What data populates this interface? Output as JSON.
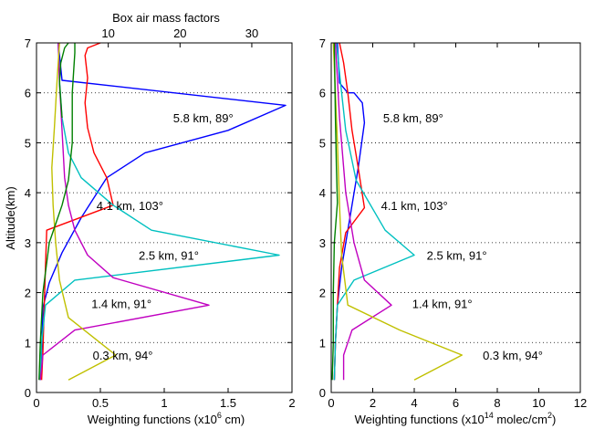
{
  "chart_data": [
    {
      "type": "line",
      "ylabel": "Altitude(km)",
      "xlabel_pre": "Weighting functions (x10",
      "xlabel_sup": "6",
      "xlabel_post": " cm)",
      "xlim": [
        0,
        2
      ],
      "ylim": [
        0,
        7
      ],
      "xticks": [
        "0",
        "0.5",
        "1",
        "1.5",
        "2"
      ],
      "yticks": [
        "0",
        "1",
        "2",
        "3",
        "4",
        "5",
        "6",
        "7"
      ],
      "grid": "horizontal dotted",
      "top_axis": {
        "label": "Box air mass factors",
        "ticks": [
          {
            "value": 10,
            "label": "10"
          },
          {
            "value": 20,
            "label": "20"
          },
          {
            "value": 30,
            "label": "30"
          }
        ],
        "scale_note": "top axis value ≈ 17.8 × bottom axis value"
      },
      "series": [
        {
          "name": "5.8 km, 89°",
          "color": "#0000ff",
          "x": [
            0.03,
            0.04,
            0.05,
            0.1,
            0.2,
            0.35,
            0.55,
            0.85,
            1.5,
            1.95,
            0.2,
            0.17
          ],
          "y": [
            0.25,
            0.8,
            1.7,
            2.2,
            2.8,
            3.5,
            4.3,
            4.8,
            5.25,
            5.75,
            6.25,
            7.0
          ]
        },
        {
          "name": "4.1 km, 103°",
          "color": "#ff0000",
          "x": [
            0.04,
            0.05,
            0.06,
            0.07,
            0.08,
            0.6,
            0.55,
            0.45,
            0.4,
            0.38,
            0.4,
            0.38,
            0.4,
            0.5
          ],
          "y": [
            0.25,
            0.8,
            1.7,
            2.5,
            3.25,
            3.75,
            4.3,
            4.8,
            5.3,
            5.8,
            6.3,
            6.75,
            6.9,
            7.0
          ]
        },
        {
          "name": "2.5 km, 91°",
          "color": "#00c0c0",
          "x": [
            0.03,
            0.04,
            0.07,
            0.3,
            1.9,
            0.9,
            0.6,
            0.35,
            0.25,
            0.2,
            0.18,
            0.17
          ],
          "y": [
            0.25,
            1.0,
            1.75,
            2.25,
            2.75,
            3.25,
            3.75,
            4.3,
            4.8,
            5.5,
            6.25,
            7.0
          ]
        },
        {
          "name": "1.4 km, 91°",
          "color": "#c000c0",
          "x": [
            0.03,
            0.05,
            0.3,
            1.35,
            0.6,
            0.4,
            0.3,
            0.25,
            0.22,
            0.2,
            0.18,
            0.17
          ],
          "y": [
            0.25,
            0.75,
            1.25,
            1.75,
            2.3,
            2.75,
            3.25,
            3.75,
            4.3,
            5.25,
            6.2,
            7.0
          ]
        },
        {
          "name": "0.3 km, 94°",
          "color": "#c0c000",
          "x": [
            0.25,
            0.62,
            0.25,
            0.18,
            0.15,
            0.13,
            0.12,
            0.14,
            0.16,
            0.18
          ],
          "y": [
            0.25,
            0.75,
            1.5,
            2.25,
            3.0,
            3.75,
            4.5,
            5.3,
            6.2,
            7.0
          ]
        },
        {
          "name": "",
          "color": "#008000",
          "x": [
            0.02,
            0.03,
            0.05,
            0.1,
            0.2,
            0.25,
            0.28,
            0.28,
            0.3,
            0.3
          ],
          "y": [
            0.25,
            1.0,
            2.0,
            3.0,
            3.75,
            4.25,
            5.0,
            6.0,
            6.8,
            7.0
          ]
        },
        {
          "name": "",
          "color": "#008000",
          "x": [
            0.2,
            0.18,
            0.19,
            0.22,
            0.25
          ],
          "y": [
            5.5,
            6.2,
            6.6,
            6.9,
            7.0
          ]
        }
      ]
    },
    {
      "type": "line",
      "xlabel_pre": "Weighting functions (x10",
      "xlabel_sup": "14",
      "xlabel_mid": " molec/cm",
      "xlabel_sup2": "2",
      "xlabel_post": ")",
      "xlim": [
        0,
        12
      ],
      "ylim": [
        0,
        7
      ],
      "xticks": [
        "0",
        "2",
        "4",
        "6",
        "8",
        "10",
        "12"
      ],
      "yticks": [
        "0",
        "1",
        "2",
        "3",
        "4",
        "5",
        "6",
        "7"
      ],
      "grid": "horizontal dotted",
      "series": [
        {
          "name": "5.8 km, 89°",
          "color": "#0000ff",
          "x": [
            0.15,
            0.2,
            0.3,
            0.5,
            0.9,
            1.3,
            1.6,
            1.5,
            1.1,
            0.8,
            0.4,
            0.3
          ],
          "y": [
            0.25,
            1.0,
            1.75,
            2.5,
            3.5,
            4.5,
            5.4,
            5.8,
            6.0,
            6.0,
            6.2,
            7.0
          ]
        },
        {
          "name": "4.1 km, 103°",
          "color": "#ff0000",
          "x": [
            0.15,
            0.2,
            0.3,
            0.4,
            0.7,
            1.6,
            1.3,
            1.0,
            0.8,
            0.6,
            0.4
          ],
          "y": [
            0.25,
            1.0,
            1.75,
            2.5,
            3.2,
            3.7,
            4.5,
            5.25,
            6.0,
            6.6,
            7.0
          ]
        },
        {
          "name": "2.5 km, 91°",
          "color": "#00c0c0",
          "x": [
            0.15,
            0.2,
            0.3,
            1.1,
            4.0,
            2.6,
            1.2,
            0.7,
            0.5,
            0.35,
            0.25
          ],
          "y": [
            0.25,
            1.0,
            1.75,
            2.25,
            2.75,
            3.25,
            4.25,
            5.25,
            6.0,
            6.6,
            7.0
          ]
        },
        {
          "name": "1.4 km, 91°",
          "color": "#c000c0",
          "x": [
            0.6,
            0.6,
            1.0,
            2.9,
            1.6,
            1.1,
            0.7,
            0.4,
            0.2
          ],
          "y": [
            0.25,
            0.75,
            1.25,
            1.75,
            2.25,
            3.0,
            4.0,
            5.5,
            7.0
          ]
        },
        {
          "name": "0.3 km, 94°",
          "color": "#c0c000",
          "x": [
            4.0,
            6.3,
            3.3,
            0.8,
            0.5,
            0.4,
            0.3,
            0.2,
            0.1
          ],
          "y": [
            0.25,
            0.75,
            1.25,
            1.75,
            2.75,
            3.75,
            5.0,
            6.0,
            7.0
          ]
        },
        {
          "name": "",
          "color": "#008000",
          "x": [
            0.05,
            0.1,
            0.1,
            0.15,
            0.3,
            0.25,
            0.2,
            0.15
          ],
          "y": [
            0.25,
            1.0,
            2.0,
            3.0,
            3.8,
            4.5,
            5.5,
            7.0
          ]
        }
      ]
    }
  ]
}
